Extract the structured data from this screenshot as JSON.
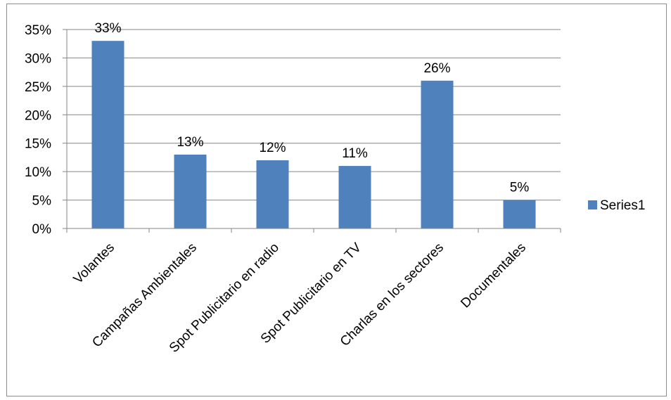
{
  "chart_data": {
    "type": "bar",
    "categories": [
      "Volantes",
      "Campañas Ambientales",
      "Spot Publicitario en radio",
      "Spot Publicitario en TV",
      "Charlas en los sectores",
      "Documentales"
    ],
    "series": [
      {
        "name": "Series1",
        "values": [
          0.33,
          0.13,
          0.12,
          0.11,
          0.26,
          0.05
        ],
        "labels": [
          "33%",
          "13%",
          "12%",
          "11%",
          "26%",
          "5%"
        ]
      }
    ],
    "yticks": [
      "0%",
      "5%",
      "10%",
      "15%",
      "20%",
      "25%",
      "30%",
      "35%"
    ],
    "ylim": [
      0,
      0.35
    ],
    "bar_color": "#4f81bd",
    "grid": true,
    "legend": "right"
  }
}
